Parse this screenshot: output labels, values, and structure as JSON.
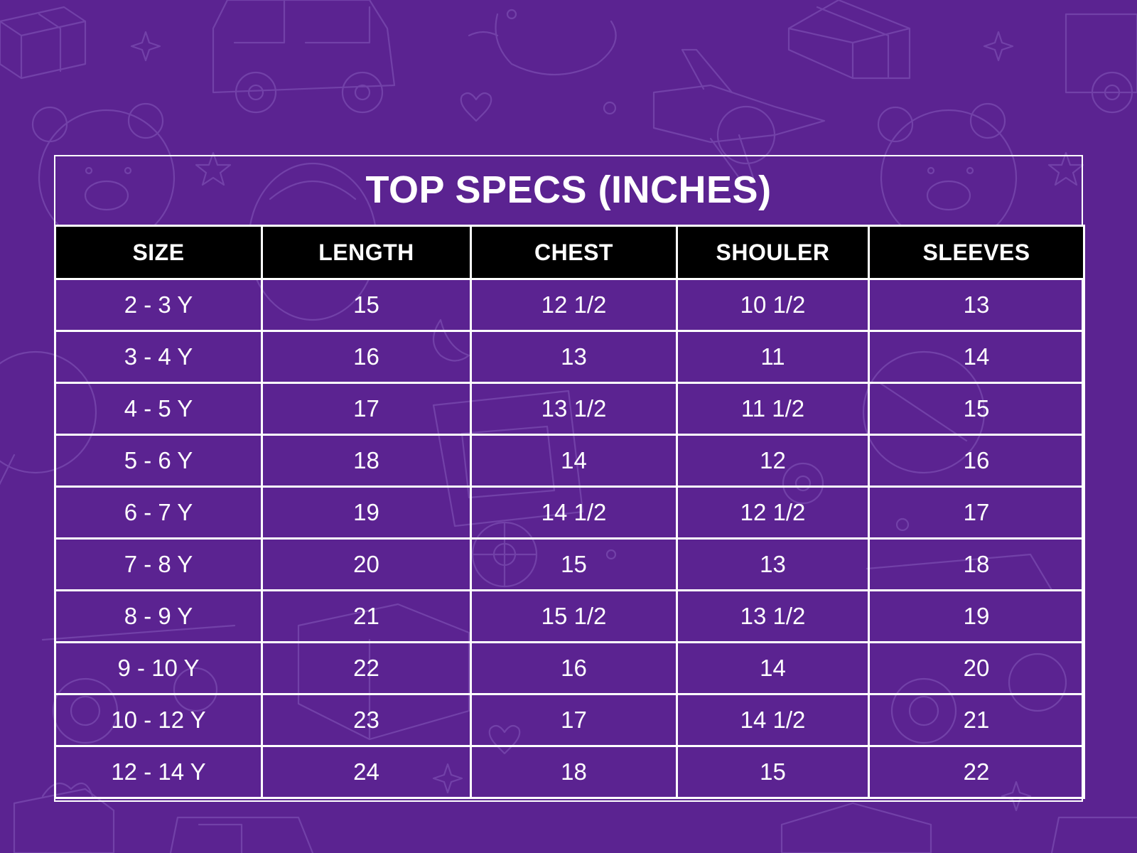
{
  "colors": {
    "background": "#5b2391",
    "header_fill": "#000000",
    "text": "#ffffff",
    "lines": "#ffffff"
  },
  "title": "TOP SPECS (INCHES)",
  "columns": [
    "SIZE",
    "LENGTH",
    "CHEST",
    "SHOULER",
    "SLEEVES"
  ],
  "rows": [
    [
      "2 - 3 Y",
      "15",
      "12 1/2",
      "10 1/2",
      "13"
    ],
    [
      "3 - 4 Y",
      "16",
      "13",
      "11",
      "14"
    ],
    [
      "4 - 5 Y",
      "17",
      "13 1/2",
      "11 1/2",
      "15"
    ],
    [
      "5 - 6 Y",
      "18",
      "14",
      "12",
      "16"
    ],
    [
      "6 - 7 Y",
      "19",
      "14 1/2",
      "12 1/2",
      "17"
    ],
    [
      "7 - 8 Y",
      "20",
      "15",
      "13",
      "18"
    ],
    [
      "8 - 9 Y",
      "21",
      "15 1/2",
      "13 1/2",
      "19"
    ],
    [
      "9 - 10 Y",
      "22",
      "16",
      "14",
      "20"
    ],
    [
      "10 - 12 Y",
      "23",
      "17",
      "14 1/2",
      "21"
    ],
    [
      "12 - 14 Y",
      "24",
      "18",
      "15",
      "22"
    ]
  ],
  "background_icons": [
    "gift-box-icon",
    "toy-car-icon",
    "rubber-duck-icon",
    "airplane-icon",
    "teddy-bear-icon",
    "heart-icon",
    "star-icon",
    "sparkle-icon",
    "hot-air-balloon-icon",
    "rattle-icon",
    "moon-icon",
    "building-block-icon",
    "scooter-icon",
    "wagon-icon"
  ]
}
